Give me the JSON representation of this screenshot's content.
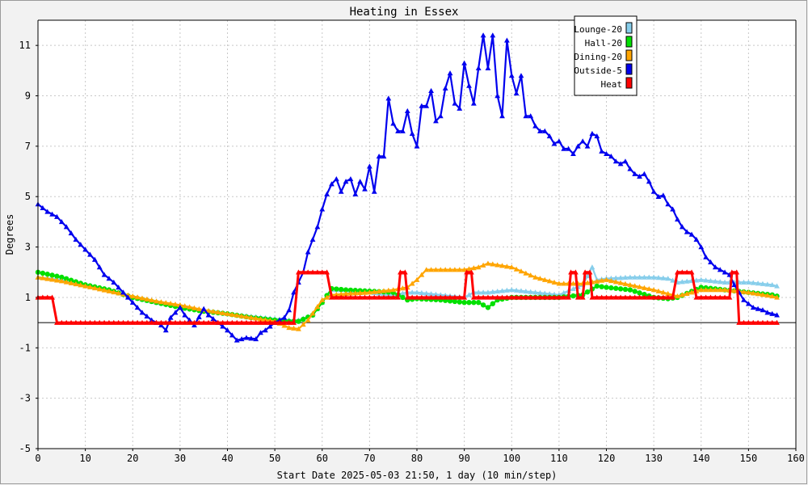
{
  "chart_data": {
    "type": "line",
    "title": "Heating in Essex",
    "xlabel": "Start Date 2025-05-03 21:50, 1 day (10 min/step)",
    "ylabel": "Degrees",
    "xlim": [
      0,
      160
    ],
    "ylim": [
      -5,
      12
    ],
    "x_ticks": [
      0,
      10,
      20,
      30,
      40,
      50,
      60,
      70,
      80,
      90,
      100,
      110,
      120,
      130,
      140,
      150,
      160
    ],
    "y_ticks": [
      -5,
      -3,
      -1,
      1,
      3,
      5,
      7,
      9,
      11
    ],
    "grid": true,
    "legend_position": "top-right",
    "series": [
      {
        "name": "Lounge-20",
        "color": "#87ceeb",
        "marker": "triangle",
        "points": [
          [
            0,
            1.8
          ],
          [
            5,
            1.7
          ],
          [
            10,
            1.5
          ],
          [
            15,
            1.3
          ],
          [
            20,
            1.0
          ],
          [
            25,
            0.8
          ],
          [
            30,
            0.65
          ],
          [
            35,
            0.5
          ],
          [
            40,
            0.35
          ],
          [
            45,
            0.25
          ],
          [
            50,
            0.15
          ],
          [
            53,
            0.1
          ],
          [
            55,
            0.1
          ],
          [
            58,
            0.3
          ],
          [
            60,
            0.8
          ],
          [
            62,
            1.3
          ],
          [
            65,
            1.3
          ],
          [
            70,
            1.2
          ],
          [
            75,
            1.1
          ],
          [
            78,
            1.2
          ],
          [
            80,
            1.2
          ],
          [
            85,
            1.1
          ],
          [
            90,
            1.0
          ],
          [
            92,
            1.2
          ],
          [
            95,
            1.2
          ],
          [
            100,
            1.3
          ],
          [
            105,
            1.2
          ],
          [
            110,
            1.1
          ],
          [
            115,
            1.5
          ],
          [
            117,
            2.2
          ],
          [
            118,
            1.7
          ],
          [
            120,
            1.75
          ],
          [
            125,
            1.8
          ],
          [
            130,
            1.8
          ],
          [
            133,
            1.75
          ],
          [
            135,
            1.6
          ],
          [
            140,
            1.7
          ],
          [
            145,
            1.6
          ],
          [
            150,
            1.6
          ],
          [
            155,
            1.5
          ],
          [
            156,
            1.45
          ]
        ]
      },
      {
        "name": "Hall-20",
        "color": "#00e000",
        "marker": "circle",
        "points": [
          [
            0,
            2.0
          ],
          [
            5,
            1.8
          ],
          [
            10,
            1.5
          ],
          [
            15,
            1.3
          ],
          [
            20,
            1.0
          ],
          [
            25,
            0.8
          ],
          [
            30,
            0.6
          ],
          [
            35,
            0.45
          ],
          [
            40,
            0.35
          ],
          [
            45,
            0.2
          ],
          [
            50,
            0.1
          ],
          [
            53,
            0.05
          ],
          [
            55,
            0.05
          ],
          [
            58,
            0.3
          ],
          [
            60,
            0.8
          ],
          [
            62,
            1.35
          ],
          [
            65,
            1.3
          ],
          [
            70,
            1.25
          ],
          [
            75,
            1.2
          ],
          [
            78,
            0.9
          ],
          [
            80,
            0.95
          ],
          [
            85,
            0.9
          ],
          [
            90,
            0.8
          ],
          [
            93,
            0.8
          ],
          [
            95,
            0.6
          ],
          [
            97,
            0.9
          ],
          [
            100,
            1.0
          ],
          [
            105,
            1.0
          ],
          [
            110,
            1.0
          ],
          [
            115,
            1.1
          ],
          [
            118,
            1.45
          ],
          [
            120,
            1.4
          ],
          [
            125,
            1.3
          ],
          [
            130,
            1.0
          ],
          [
            133,
            0.95
          ],
          [
            135,
            1.0
          ],
          [
            140,
            1.4
          ],
          [
            145,
            1.3
          ],
          [
            150,
            1.2
          ],
          [
            155,
            1.1
          ],
          [
            156,
            1.05
          ]
        ]
      },
      {
        "name": "Dining-20",
        "color": "#ffa500",
        "marker": "triangle",
        "points": [
          [
            0,
            1.8
          ],
          [
            5,
            1.65
          ],
          [
            10,
            1.45
          ],
          [
            15,
            1.25
          ],
          [
            20,
            1.05
          ],
          [
            25,
            0.85
          ],
          [
            30,
            0.7
          ],
          [
            35,
            0.5
          ],
          [
            40,
            0.35
          ],
          [
            45,
            0.2
          ],
          [
            50,
            0.05
          ],
          [
            53,
            -0.2
          ],
          [
            55,
            -0.25
          ],
          [
            57,
            0.1
          ],
          [
            60,
            0.9
          ],
          [
            62,
            1.1
          ],
          [
            65,
            1.15
          ],
          [
            70,
            1.2
          ],
          [
            75,
            1.3
          ],
          [
            78,
            1.4
          ],
          [
            80,
            1.7
          ],
          [
            82,
            2.1
          ],
          [
            85,
            2.1
          ],
          [
            90,
            2.1
          ],
          [
            93,
            2.2
          ],
          [
            95,
            2.35
          ],
          [
            100,
            2.2
          ],
          [
            105,
            1.8
          ],
          [
            110,
            1.55
          ],
          [
            115,
            1.55
          ],
          [
            120,
            1.7
          ],
          [
            125,
            1.5
          ],
          [
            130,
            1.3
          ],
          [
            135,
            1.05
          ],
          [
            140,
            1.3
          ],
          [
            145,
            1.3
          ],
          [
            150,
            1.2
          ],
          [
            155,
            1.05
          ],
          [
            156,
            1.0
          ]
        ]
      },
      {
        "name": "Outside-5",
        "color": "#0000ee",
        "marker": "triangle",
        "points": [
          [
            0,
            4.7
          ],
          [
            2,
            4.4
          ],
          [
            4,
            4.2
          ],
          [
            6,
            3.8
          ],
          [
            8,
            3.3
          ],
          [
            10,
            2.9
          ],
          [
            12,
            2.5
          ],
          [
            14,
            1.9
          ],
          [
            16,
            1.6
          ],
          [
            18,
            1.2
          ],
          [
            20,
            0.8
          ],
          [
            22,
            0.4
          ],
          [
            24,
            0.1
          ],
          [
            26,
            -0.1
          ],
          [
            27,
            -0.3
          ],
          [
            28,
            0.2
          ],
          [
            30,
            0.6
          ],
          [
            31,
            0.3
          ],
          [
            32,
            0.1
          ],
          [
            33,
            -0.1
          ],
          [
            35,
            0.55
          ],
          [
            36,
            0.3
          ],
          [
            38,
            0.0
          ],
          [
            40,
            -0.3
          ],
          [
            42,
            -0.7
          ],
          [
            44,
            -0.6
          ],
          [
            46,
            -0.65
          ],
          [
            47,
            -0.4
          ],
          [
            48,
            -0.3
          ],
          [
            50,
            0.0
          ],
          [
            52,
            0.2
          ],
          [
            53,
            0.5
          ],
          [
            54,
            1.2
          ],
          [
            56,
            2.0
          ],
          [
            57,
            2.8
          ],
          [
            58,
            3.3
          ],
          [
            59,
            3.8
          ],
          [
            60,
            4.5
          ],
          [
            61,
            5.1
          ],
          [
            62,
            5.5
          ],
          [
            63,
            5.7
          ],
          [
            64,
            5.2
          ],
          [
            65,
            5.6
          ],
          [
            66,
            5.7
          ],
          [
            67,
            5.1
          ],
          [
            68,
            5.6
          ],
          [
            69,
            5.3
          ],
          [
            70,
            6.2
          ],
          [
            71,
            5.2
          ],
          [
            72,
            6.6
          ],
          [
            73,
            6.6
          ],
          [
            74,
            8.9
          ],
          [
            75,
            7.9
          ],
          [
            76,
            7.6
          ],
          [
            77,
            7.6
          ],
          [
            78,
            8.4
          ],
          [
            79,
            7.5
          ],
          [
            80,
            7.0
          ],
          [
            81,
            8.6
          ],
          [
            82,
            8.6
          ],
          [
            83,
            9.2
          ],
          [
            84,
            8.0
          ],
          [
            85,
            8.2
          ],
          [
            86,
            9.3
          ],
          [
            87,
            9.9
          ],
          [
            88,
            8.7
          ],
          [
            89,
            8.5
          ],
          [
            90,
            10.3
          ],
          [
            91,
            9.4
          ],
          [
            92,
            8.7
          ],
          [
            93,
            10.1
          ],
          [
            94,
            11.4
          ],
          [
            95,
            10.1
          ],
          [
            96,
            11.4
          ],
          [
            97,
            9.0
          ],
          [
            98,
            8.2
          ],
          [
            99,
            11.2
          ],
          [
            100,
            9.8
          ],
          [
            101,
            9.1
          ],
          [
            102,
            9.8
          ],
          [
            103,
            8.2
          ],
          [
            104,
            8.2
          ],
          [
            105,
            7.8
          ],
          [
            106,
            7.6
          ],
          [
            107,
            7.6
          ],
          [
            108,
            7.4
          ],
          [
            109,
            7.1
          ],
          [
            110,
            7.2
          ],
          [
            111,
            6.9
          ],
          [
            112,
            6.9
          ],
          [
            113,
            6.7
          ],
          [
            114,
            7.0
          ],
          [
            115,
            7.2
          ],
          [
            116,
            7.0
          ],
          [
            117,
            7.5
          ],
          [
            118,
            7.4
          ],
          [
            119,
            6.8
          ],
          [
            120,
            6.7
          ],
          [
            121,
            6.6
          ],
          [
            122,
            6.4
          ],
          [
            123,
            6.3
          ],
          [
            124,
            6.4
          ],
          [
            125,
            6.1
          ],
          [
            126,
            5.9
          ],
          [
            127,
            5.8
          ],
          [
            128,
            5.9
          ],
          [
            129,
            5.6
          ],
          [
            130,
            5.2
          ],
          [
            131,
            5.0
          ],
          [
            132,
            5.05
          ],
          [
            133,
            4.7
          ],
          [
            134,
            4.5
          ],
          [
            135,
            4.1
          ],
          [
            136,
            3.8
          ],
          [
            137,
            3.6
          ],
          [
            138,
            3.5
          ],
          [
            139,
            3.3
          ],
          [
            140,
            3.0
          ],
          [
            141,
            2.6
          ],
          [
            142,
            2.4
          ],
          [
            143,
            2.2
          ],
          [
            144,
            2.1
          ],
          [
            145,
            2.0
          ],
          [
            146,
            1.9
          ],
          [
            147,
            1.5
          ],
          [
            148,
            1.2
          ],
          [
            149,
            0.9
          ],
          [
            150,
            0.75
          ],
          [
            151,
            0.6
          ],
          [
            152,
            0.55
          ],
          [
            153,
            0.5
          ],
          [
            154,
            0.4
          ],
          [
            155,
            0.35
          ],
          [
            156,
            0.3
          ]
        ]
      },
      {
        "name": "Heat",
        "color": "#ff0000",
        "marker": "triangle",
        "points": [
          [
            0,
            1.0
          ],
          [
            3,
            1.0
          ],
          [
            4,
            0.0
          ],
          [
            54,
            0.0
          ],
          [
            55,
            2.0
          ],
          [
            61,
            2.0
          ],
          [
            62,
            1.0
          ],
          [
            76,
            1.0
          ],
          [
            76.5,
            2.0
          ],
          [
            77.5,
            2.0
          ],
          [
            78,
            1.0
          ],
          [
            90,
            1.0
          ],
          [
            90.5,
            2.0
          ],
          [
            91.5,
            2.0
          ],
          [
            92,
            1.0
          ],
          [
            112,
            1.0
          ],
          [
            112.5,
            2.0
          ],
          [
            113.5,
            2.0
          ],
          [
            114,
            1.0
          ],
          [
            115,
            1.0
          ],
          [
            115.5,
            2.0
          ],
          [
            116.5,
            2.0
          ],
          [
            117,
            1.0
          ],
          [
            134,
            1.0
          ],
          [
            135,
            2.0
          ],
          [
            138,
            2.0
          ],
          [
            139,
            1.0
          ],
          [
            146,
            1.0
          ],
          [
            146.5,
            2.0
          ],
          [
            147.5,
            2.0
          ],
          [
            148,
            0.0
          ],
          [
            156,
            0.0
          ]
        ]
      }
    ]
  }
}
